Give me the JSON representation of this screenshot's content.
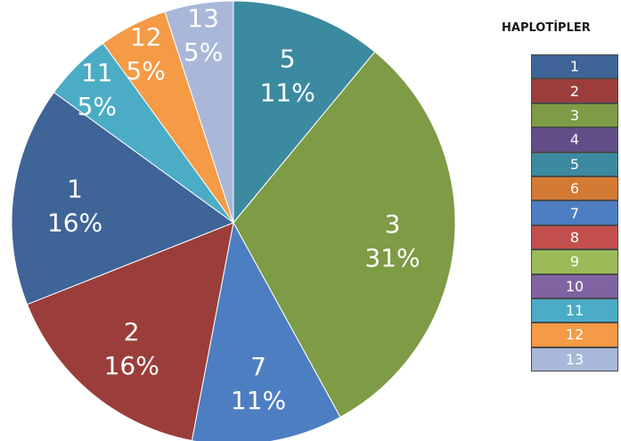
{
  "chart_data": {
    "type": "pie",
    "start_angle_deg": 0,
    "direction": "clockwise",
    "slices": [
      {
        "label": "5",
        "value": 11,
        "percent_label": "11%",
        "color": "#3C8AA0"
      },
      {
        "label": "3",
        "value": 31,
        "percent_label": "31%",
        "color": "#7E9B45"
      },
      {
        "label": "7",
        "value": 11,
        "percent_label": "11%",
        "color": "#4D7EC1"
      },
      {
        "label": "2",
        "value": 16,
        "percent_label": "16%",
        "color": "#9B3E3B"
      },
      {
        "label": "1",
        "value": 16,
        "percent_label": "16%",
        "color": "#3F6498"
      },
      {
        "label": "11",
        "value": 5,
        "percent_label": "5%",
        "color": "#4BACC6"
      },
      {
        "label": "12",
        "value": 5,
        "percent_label": "5%",
        "color": "#F59A45"
      },
      {
        "label": "13",
        "value": 5,
        "percent_label": "5%",
        "color": "#A9B8D9"
      }
    ],
    "legend": {
      "title": "HAPLOTİPLER",
      "placement": "right",
      "items": [
        {
          "label": "1",
          "color": "#3F6498"
        },
        {
          "label": "2",
          "color": "#9B3E3B"
        },
        {
          "label": "3",
          "color": "#7E9B45"
        },
        {
          "label": "4",
          "color": "#634E8A"
        },
        {
          "label": "5",
          "color": "#3C8AA0"
        },
        {
          "label": "6",
          "color": "#D47A35"
        },
        {
          "label": "7",
          "color": "#4D7EC1"
        },
        {
          "label": "8",
          "color": "#C34F4C"
        },
        {
          "label": "9",
          "color": "#9BBB59"
        },
        {
          "label": "10",
          "color": "#8064A2"
        },
        {
          "label": "11",
          "color": "#4BACC6"
        },
        {
          "label": "12",
          "color": "#F59A45"
        },
        {
          "label": "13",
          "color": "#A9B8D9"
        }
      ]
    }
  }
}
